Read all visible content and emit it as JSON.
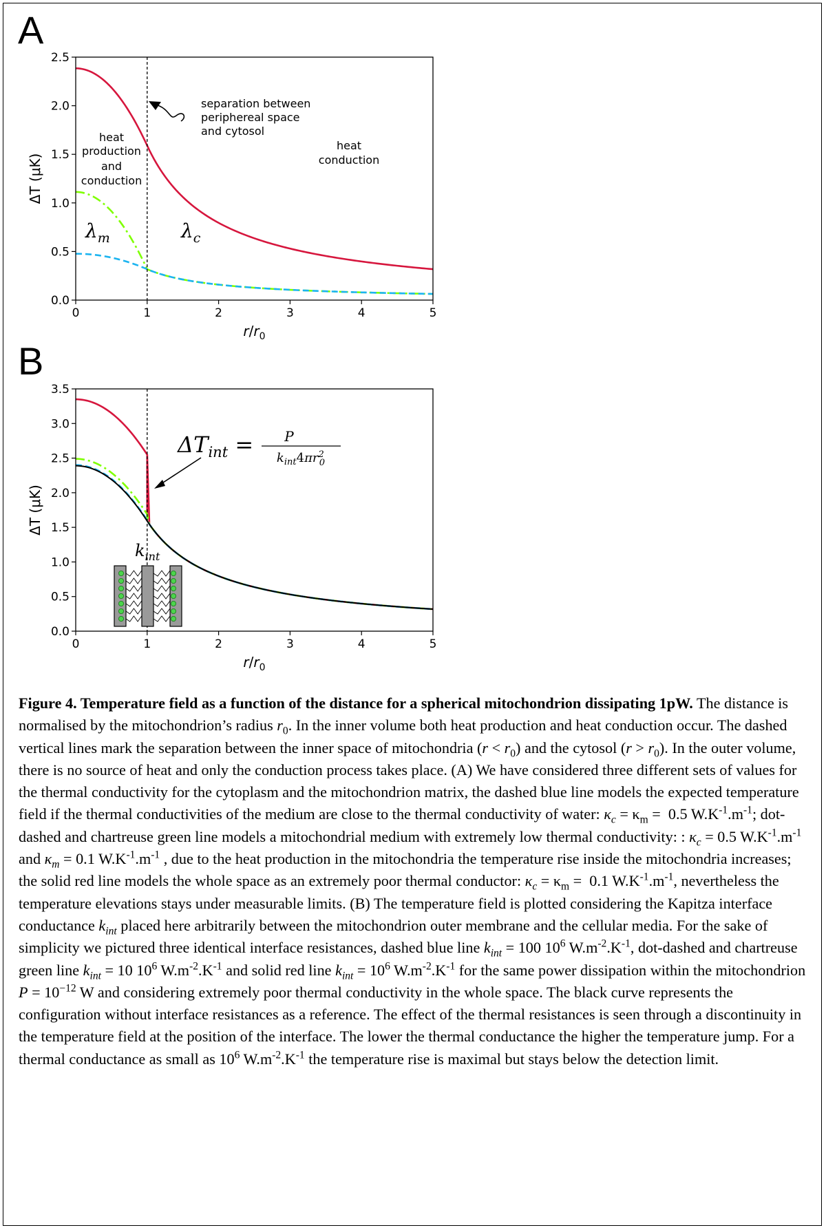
{
  "panels": {
    "a_letter": "A",
    "b_letter": "B"
  },
  "chart_data": [
    {
      "type": "line",
      "panel": "A",
      "ylabel": "ΔT (μK)",
      "xlabel": "r/r0",
      "xlim": [
        0,
        5
      ],
      "ylim": [
        0,
        2.5
      ],
      "xticks": [
        "0",
        "1",
        "2",
        "3",
        "4",
        "5"
      ],
      "yticks": [
        "0.0",
        "0.5",
        "1.0",
        "1.5",
        "2.0",
        "2.5"
      ],
      "grid": false,
      "vline_x": 1,
      "series": [
        {
          "style": "solid",
          "color": "#d6163d",
          "kc": 0.1,
          "km": 0.1,
          "power_pW": 1
        },
        {
          "style": "dash-dot",
          "color": "#7fff00",
          "kc": 0.5,
          "km": 0.1,
          "power_pW": 1
        },
        {
          "style": "dashed",
          "color": "#1cb4f0",
          "kc": 0.5,
          "km": 0.5,
          "power_pW": 1
        }
      ],
      "annotations": {
        "separation": [
          "separation between",
          "periphereal space",
          "and cytosol"
        ],
        "inner": [
          "heat",
          "production",
          "and",
          "conduction"
        ],
        "outer": [
          "heat",
          "conduction"
        ],
        "lambda_m": "λm",
        "lambda_c": "λc"
      }
    },
    {
      "type": "line",
      "panel": "B",
      "ylabel": "ΔT (μK)",
      "xlabel": "r/r0",
      "xlim": [
        0,
        5
      ],
      "ylim": [
        0,
        3.5
      ],
      "xticks": [
        "0",
        "1",
        "2",
        "3",
        "4",
        "5"
      ],
      "yticks": [
        "0.0",
        "0.5",
        "1.0",
        "1.5",
        "2.0",
        "2.5",
        "3.0",
        "3.5"
      ],
      "grid": false,
      "vline_x": 1,
      "series": [
        {
          "style": "solid",
          "color": "#d6163d",
          "kint_MW": 1,
          "jump": 0.9576,
          "center": 3.35
        },
        {
          "style": "dash-dot",
          "color": "#7fff00",
          "kint_MW": 10,
          "jump": 0.0958,
          "center": 2.49
        },
        {
          "style": "dashed",
          "color": "#1cb4f0",
          "kint_MW": 100,
          "jump": 0.0096,
          "center": 2.4
        },
        {
          "style": "solid",
          "color": "#000000",
          "reference": true,
          "jump": 0,
          "center": 2.39
        }
      ],
      "annotations": {
        "delta_t_int": "ΔTint = P / (kint 4π r0²)",
        "k_int": "kint"
      }
    }
  ],
  "caption": {
    "title": "Figure 4. Temperature field as a function of the distance for a spherical mitochondrion dissipating 1pW."
  }
}
